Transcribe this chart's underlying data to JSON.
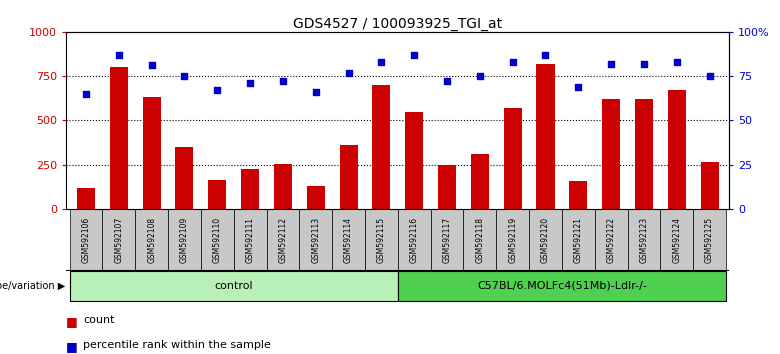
{
  "title": "GDS4527 / 100093925_TGI_at",
  "samples": [
    "GSM592106",
    "GSM592107",
    "GSM592108",
    "GSM592109",
    "GSM592110",
    "GSM592111",
    "GSM592112",
    "GSM592113",
    "GSM592114",
    "GSM592115",
    "GSM592116",
    "GSM592117",
    "GSM592118",
    "GSM592119",
    "GSM592120",
    "GSM592121",
    "GSM592122",
    "GSM592123",
    "GSM592124",
    "GSM592125"
  ],
  "counts": [
    120,
    800,
    630,
    350,
    165,
    225,
    255,
    130,
    360,
    700,
    550,
    245,
    310,
    570,
    820,
    160,
    620,
    620,
    670,
    265
  ],
  "percentile_ranks": [
    65,
    87,
    81,
    75,
    67,
    71,
    72,
    66,
    77,
    83,
    87,
    72,
    75,
    83,
    87,
    69,
    82,
    82,
    83,
    75
  ],
  "group1_label": "control",
  "group1_count": 10,
  "group2_label": "C57BL/6.MOLFc4(51Mb)-Ldlr-/-",
  "group2_count": 10,
  "bar_color": "#cc0000",
  "dot_color": "#0000cc",
  "ylim_left": [
    0,
    1000
  ],
  "ylim_right": [
    0,
    100
  ],
  "yticks_left": [
    0,
    250,
    500,
    750,
    1000
  ],
  "ytick_labels_left": [
    "0",
    "250",
    "500",
    "750",
    "1000"
  ],
  "yticks_right": [
    0,
    25,
    50,
    75,
    100
  ],
  "ytick_labels_right": [
    "0",
    "25",
    "50",
    "75",
    "100%"
  ],
  "genotype_label": "genotype/variation",
  "legend_count_label": "count",
  "legend_pct_label": "percentile rank within the sample",
  "bg_color": "#ffffff",
  "tick_bg": "#c8c8c8",
  "group1_color": "#b8f0b8",
  "group2_color": "#50d050"
}
